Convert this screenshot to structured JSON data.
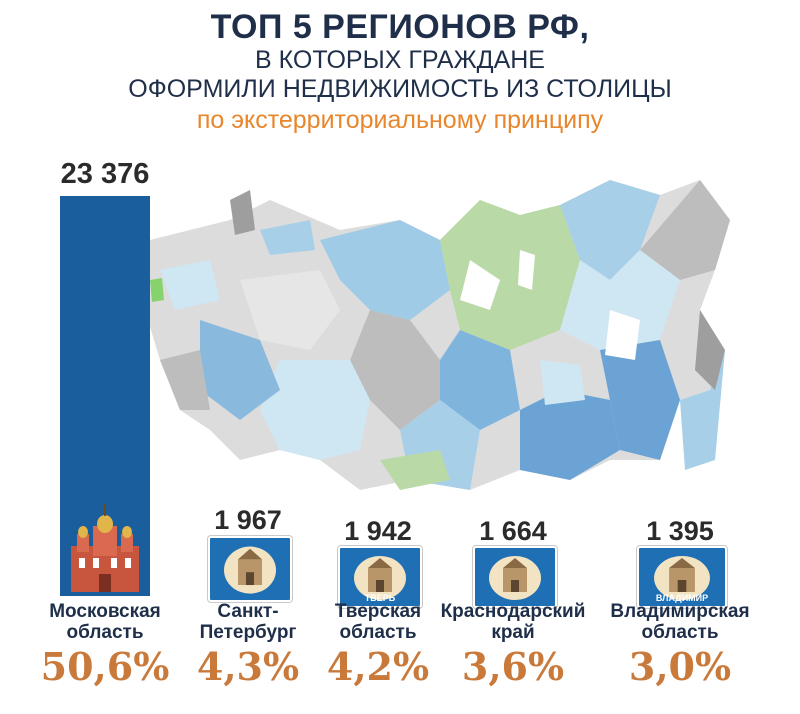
{
  "header": {
    "line1": "ТОП 5 РЕГИОНОВ РФ,",
    "line2": "В КОТОРЫХ ГРАЖДАНЕ",
    "line3": "ОФОРМИЛИ НЕДВИЖИМОСТЬ ИЗ СТОЛИЦЫ",
    "line4": "по экстерриториальному принципу"
  },
  "colors": {
    "bar": "#1b5e9e",
    "tile": "#1f6fb5",
    "title": "#1f2f4a",
    "subtitle": "#e8862c",
    "share": "#c97a3b"
  },
  "chart_data": {
    "type": "bar",
    "categories": [
      "Московская область",
      "Санкт-Петербург",
      "Тверская область",
      "Краснодарский край",
      "Владимирская область"
    ],
    "values": [
      23376,
      1967,
      1942,
      1664,
      1395
    ],
    "value_labels": [
      "23 376",
      "1 967",
      "1 942",
      "1 664",
      "1 395"
    ],
    "shares": [
      "50,6%",
      "4,3%",
      "4,2%",
      "3,6%",
      "3,0%"
    ],
    "name_lines": [
      [
        "Московская",
        "область"
      ],
      [
        "Санкт-",
        "Петербург"
      ],
      [
        "Тверская",
        "область"
      ],
      [
        "Краснодарский",
        "край"
      ],
      [
        "Владимирская",
        "область"
      ]
    ],
    "tile_captions": [
      "",
      "",
      "ТВЕРЬ",
      "",
      "ВЛАДИМИР"
    ]
  }
}
